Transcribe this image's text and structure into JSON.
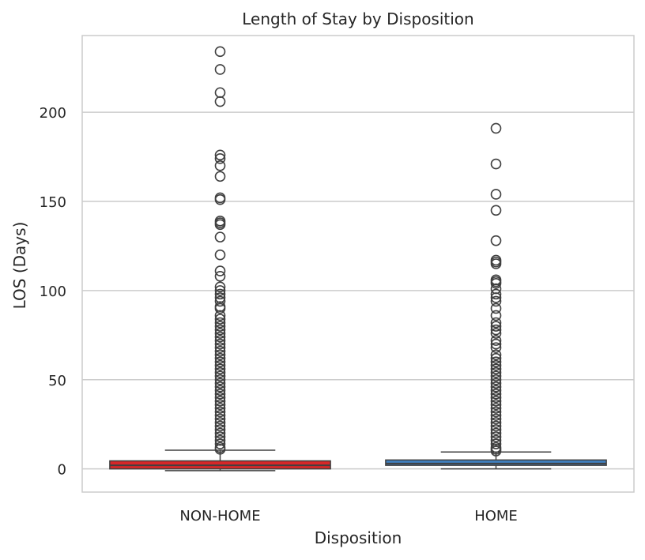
{
  "chart_data": {
    "type": "box",
    "title": "Length of Stay by Disposition",
    "xlabel": "Disposition",
    "ylabel": "LOS (Days)",
    "categories": [
      "NON-HOME",
      "HOME"
    ],
    "ylim": [
      -13,
      243
    ],
    "yticks": [
      0,
      50,
      100,
      150,
      200
    ],
    "grid": true,
    "boxes": [
      {
        "category": "NON-HOME",
        "color": "#d62728",
        "min": -1,
        "q1": 0,
        "median": 2,
        "q3": 4.5,
        "whisker_high": 10.5,
        "outliers": [
          234,
          224,
          211,
          206,
          176,
          174,
          170,
          164,
          152,
          151,
          139,
          138,
          137,
          130,
          120,
          111,
          108,
          102,
          100,
          98,
          96,
          94,
          91,
          90,
          86,
          84,
          82,
          80,
          78,
          76,
          74,
          72,
          70,
          68,
          66,
          64,
          62,
          60,
          58,
          56,
          54,
          52,
          50,
          48,
          46,
          44,
          42,
          40,
          38,
          36,
          34,
          32,
          30,
          28,
          26,
          24,
          22,
          20,
          18,
          16,
          14,
          12,
          11
        ]
      },
      {
        "category": "HOME",
        "color": "#3f7fbf",
        "min": 0,
        "q1": 2,
        "median": 3,
        "q3": 5,
        "whisker_high": 9.5,
        "outliers": [
          191,
          171,
          154,
          145,
          128,
          117,
          116,
          115,
          106,
          105,
          104,
          101,
          98,
          96,
          94,
          90,
          86,
          82,
          80,
          78,
          76,
          72,
          70,
          68,
          64,
          62,
          60,
          58,
          56,
          54,
          52,
          50,
          48,
          46,
          44,
          42,
          40,
          38,
          36,
          34,
          32,
          30,
          28,
          26,
          24,
          22,
          20,
          18,
          16,
          14,
          12,
          11,
          10
        ]
      }
    ]
  }
}
